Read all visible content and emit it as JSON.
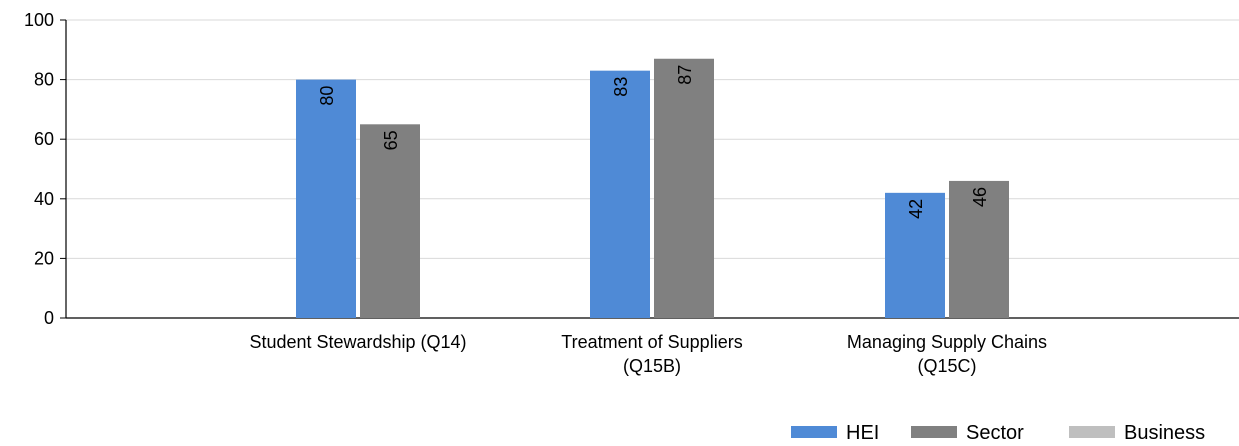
{
  "chart_data": {
    "type": "bar",
    "categories": [
      [
        "Student Stewardship (Q14)"
      ],
      [
        "Treatment of Suppliers",
        "(Q15B)"
      ],
      [
        "Managing Supply Chains",
        "(Q15C)"
      ]
    ],
    "series": [
      {
        "name": "HEI",
        "values": [
          80,
          83,
          42
        ],
        "color": "#4f8ad6"
      },
      {
        "name": "Sector",
        "values": [
          65,
          87,
          46
        ],
        "color": "#808080"
      },
      {
        "name": "Business",
        "values": [
          null,
          null,
          null
        ],
        "color": "#bfbfbf"
      }
    ],
    "ylim": [
      0,
      100
    ],
    "yticks": [
      0,
      20,
      40,
      60,
      80,
      100
    ],
    "grid": true,
    "legend_position": "bottom-right",
    "data_labels": true
  }
}
